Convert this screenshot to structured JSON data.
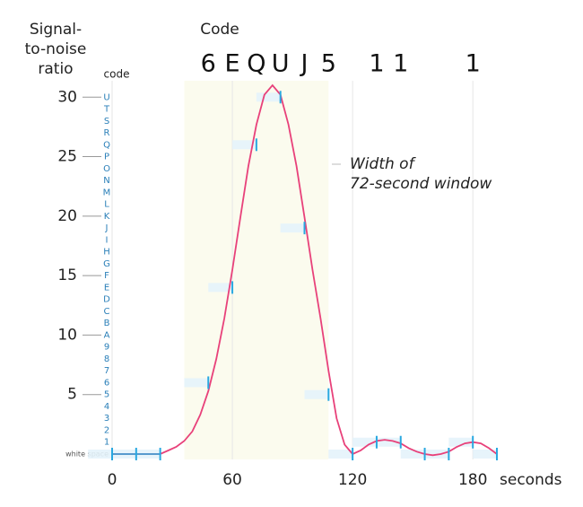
{
  "chart_data": {
    "type": "line",
    "title": "Code",
    "y_label": [
      "Signal-",
      "to-noise",
      "ratio"
    ],
    "code_axis_label": "code",
    "x_label": "seconds",
    "annotation": [
      "Width of",
      "72-second window"
    ],
    "highlight": [
      36,
      108
    ],
    "xlim": [
      0,
      192
    ],
    "ylim": [
      0,
      31
    ],
    "xticks": [
      0,
      60,
      120,
      180
    ],
    "yticks": [
      5,
      10,
      15,
      20,
      25,
      30
    ],
    "code_ticks": [
      {
        "value": 0,
        "label": "white space"
      },
      1,
      2,
      3,
      4,
      5,
      6,
      7,
      8,
      9,
      {
        "value": 10,
        "label": "A"
      },
      {
        "value": 11,
        "label": "B"
      },
      {
        "value": 12,
        "label": "C"
      },
      {
        "value": 13,
        "label": "D"
      },
      {
        "value": 14,
        "label": "E"
      },
      {
        "value": 15,
        "label": "F"
      },
      {
        "value": 16,
        "label": "G"
      },
      {
        "value": 17,
        "label": "H"
      },
      {
        "value": 18,
        "label": "I"
      },
      {
        "value": 19,
        "label": "J"
      },
      {
        "value": 20,
        "label": "K"
      },
      {
        "value": 21,
        "label": "L"
      },
      {
        "value": 22,
        "label": "M"
      },
      {
        "value": 23,
        "label": "N"
      },
      {
        "value": 24,
        "label": "O"
      },
      {
        "value": 25,
        "label": "P"
      },
      {
        "value": 26,
        "label": "Q"
      },
      {
        "value": 27,
        "label": "R"
      },
      {
        "value": 28,
        "label": "S"
      },
      {
        "value": 29,
        "label": "T"
      },
      {
        "value": 30,
        "label": "U"
      }
    ],
    "curve": {
      "color": "#e8417a",
      "x": [
        0,
        24,
        28,
        32,
        36,
        40,
        44,
        48,
        52,
        56,
        60,
        64,
        68,
        72,
        76,
        80,
        84,
        88,
        92,
        96,
        100,
        104,
        108,
        112,
        116,
        120,
        124,
        128,
        132,
        136,
        140,
        144,
        148,
        152,
        156,
        160,
        164,
        168,
        172,
        176,
        180,
        184,
        188,
        192
      ],
      "values": [
        0,
        0,
        0.3,
        0.6,
        1.1,
        1.9,
        3.3,
        5.3,
        8.0,
        11.4,
        15.5,
        19.9,
        24.2,
        27.7,
        30.2,
        31,
        30.2,
        27.7,
        24.2,
        19.9,
        15.5,
        11.4,
        7.0,
        3.0,
        0.8,
        0,
        0.3,
        0.8,
        1.1,
        1.2,
        1.1,
        0.9,
        0.5,
        0.2,
        0,
        -0.1,
        0,
        0.2,
        0.6,
        0.9,
        1.0,
        0.9,
        0.5,
        0
      ]
    },
    "observations": {
      "color": "#29a8e0",
      "x": [
        0,
        12,
        24,
        48,
        60,
        72,
        84,
        96,
        108,
        120,
        132,
        144,
        156,
        168,
        180,
        192
      ],
      "values": [
        0,
        0,
        0,
        6,
        14,
        26,
        30,
        19,
        5,
        0,
        1,
        1,
        0,
        0,
        1,
        0
      ],
      "value_labels": [
        null,
        null,
        null,
        "6",
        "E",
        "Q",
        "U",
        "J",
        "5",
        null,
        "1",
        "1",
        null,
        null,
        "1",
        null
      ]
    }
  }
}
